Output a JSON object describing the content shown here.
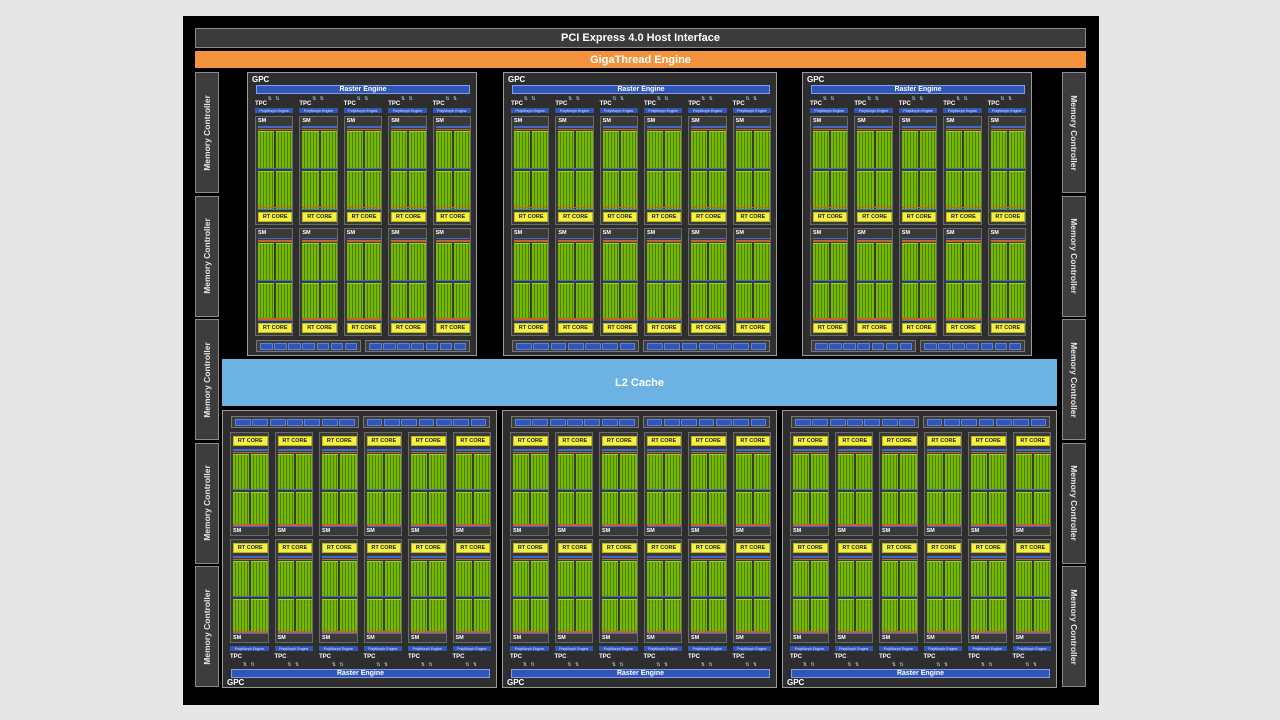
{
  "labels": {
    "pcie": "PCI Express 4.0 Host Interface",
    "gigathread": "GigaThread Engine",
    "l2": "L2 Cache",
    "memory_controller": "Memory Controller",
    "gpc": "GPC",
    "raster": "Raster Engine",
    "tpc": "TPC",
    "polymorph": "PolyMorph Engine",
    "sm": "SM",
    "rt_core": "RT CORE"
  },
  "layout": {
    "top_gpcs": [
      {
        "tpcs": 5
      },
      {
        "tpcs": 6
      },
      {
        "tpcs": 5
      }
    ],
    "bottom_gpcs": [
      {
        "tpcs": 6
      },
      {
        "tpcs": 6
      },
      {
        "tpcs": 6
      }
    ],
    "memory_controllers_per_side": 5
  },
  "colors": {
    "background": "#e6e6e6",
    "chip": "#000000",
    "gigathread": "#f2923d",
    "l2": "#6cb2e2",
    "raster": "#2f56b8",
    "cuda_cores": "#76b900",
    "rt_core": "#f3ef45"
  }
}
